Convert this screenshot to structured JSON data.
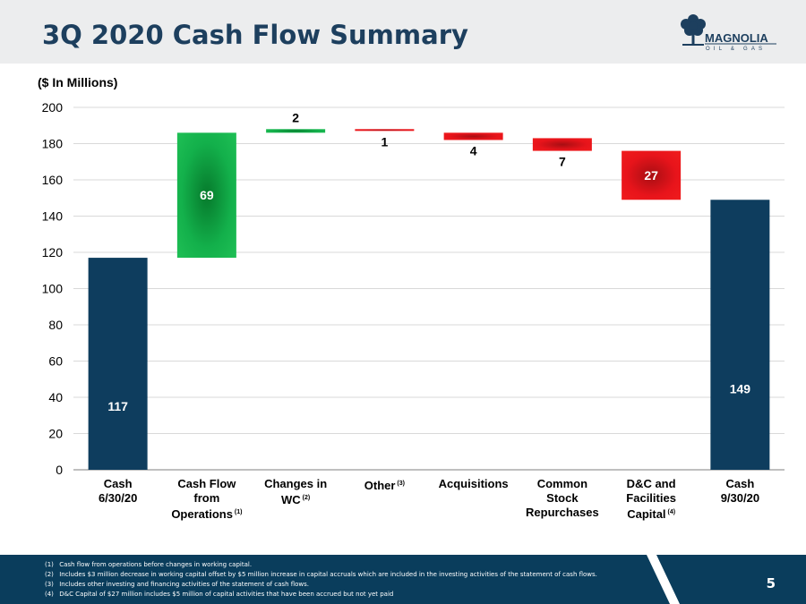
{
  "header": {
    "title": "3Q 2020 Cash Flow Summary",
    "logo_text": "MAGNOLIA",
    "logo_subtext": "OIL & GAS"
  },
  "unit_label": "($ In Millions)",
  "chart_data": {
    "type": "bar",
    "subtype": "waterfall",
    "unit": "$ In Millions",
    "categories": [
      {
        "lines": [
          "Cash",
          "6/30/20"
        ],
        "footnote": ""
      },
      {
        "lines": [
          "Cash Flow",
          "from",
          "Operations"
        ],
        "footnote": "(1)"
      },
      {
        "lines": [
          "Changes in",
          "WC"
        ],
        "footnote": "(2)"
      },
      {
        "lines": [
          "Other"
        ],
        "footnote": "(3)"
      },
      {
        "lines": [
          "Acquisitions"
        ],
        "footnote": ""
      },
      {
        "lines": [
          "Common",
          "Stock",
          "Repurchases"
        ],
        "footnote": ""
      },
      {
        "lines": [
          "D&C and",
          "Facilities",
          "Capital"
        ],
        "footnote": "(4)"
      },
      {
        "lines": [
          "Cash",
          "9/30/20"
        ],
        "footnote": ""
      }
    ],
    "bars": [
      {
        "kind": "total",
        "start": 0,
        "end": 117,
        "label": "117"
      },
      {
        "kind": "increase",
        "start": 117,
        "end": 186,
        "label": "69"
      },
      {
        "kind": "increase",
        "start": 186,
        "end": 188,
        "label": "2"
      },
      {
        "kind": "decrease",
        "start": 188,
        "end": 187,
        "label": "1"
      },
      {
        "kind": "decrease",
        "start": 186,
        "end": 182,
        "label": "4"
      },
      {
        "kind": "decrease",
        "start": 183,
        "end": 176,
        "label": "7"
      },
      {
        "kind": "decrease",
        "start": 176,
        "end": 149,
        "label": "27"
      },
      {
        "kind": "total",
        "start": 0,
        "end": 149,
        "label": "149"
      }
    ],
    "y_ticks": [
      "0",
      "20",
      "40",
      "60",
      "80",
      "100",
      "120",
      "140",
      "160",
      "180",
      "200"
    ],
    "ylim": [
      0,
      200
    ],
    "grid": true,
    "colors": {
      "total": "#0e3d5e",
      "increase": "#13b04b",
      "decrease": "#e8141b",
      "grid": "#d9d9d9"
    }
  },
  "footnotes": [
    {
      "num": "(1)",
      "text": "Cash flow from operations before changes in working capital."
    },
    {
      "num": "(2)",
      "text": "Includes $3 million decrease in working capital offset by $5 million increase in capital accruals which are included in the investing activities of the statement of cash flows."
    },
    {
      "num": "(3)",
      "text": "Includes other investing and financing activities of the statement of cash flows."
    },
    {
      "num": "(4)",
      "text": "D&C Capital of $27 million includes $5 million of capital activities that have been accrued but not yet paid"
    }
  ],
  "page_number": "5",
  "colors": {
    "brand_dark": "#0a3d5c",
    "title": "#1d3f5e",
    "header_bg": "#ecedee"
  }
}
